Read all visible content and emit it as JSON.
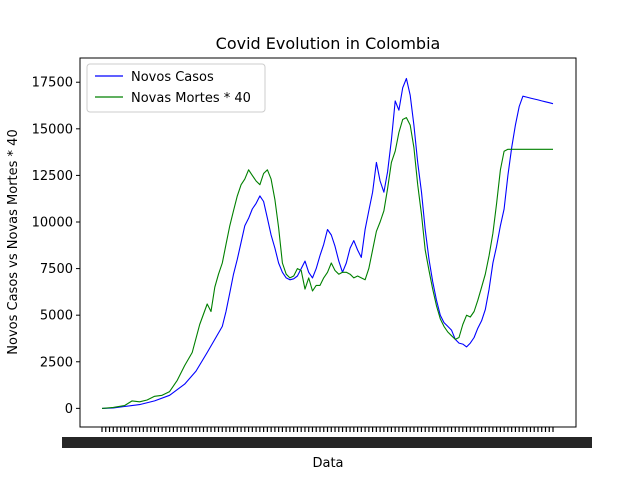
{
  "chart_data": {
    "type": "line",
    "title": "Covid Evolution in Colombia",
    "xlabel": "Data",
    "ylabel": "Novos Casos vs Novas Mortes * 40",
    "ylim": [
      -1000,
      18800
    ],
    "yticks": [
      0,
      2500,
      5000,
      7500,
      10000,
      12500,
      15000,
      17500
    ],
    "ytick_labels": [
      "0",
      "2500",
      "5000",
      "7500",
      "10000",
      "12500",
      "15000",
      "17500"
    ],
    "x_tick_labels_illegible": true,
    "x_index_range": [
      0,
      120
    ],
    "grid": false,
    "legend_position": "top-left",
    "series": [
      {
        "name": "Novos Casos",
        "color": "#0000ff",
        "x": [
          0,
          3,
          6,
          10,
          14,
          18,
          22,
          25,
          28,
          30,
          32,
          33,
          34,
          35,
          36,
          38,
          39,
          40,
          41,
          42,
          43,
          44,
          45,
          46,
          47,
          48,
          49,
          50,
          51,
          52,
          53,
          54,
          55,
          56,
          57,
          58,
          59,
          60,
          61,
          62,
          63,
          64,
          65,
          66,
          67,
          68,
          69,
          70,
          71,
          72,
          73,
          74,
          75,
          76,
          77,
          78,
          79,
          80,
          81,
          82,
          83,
          84,
          85,
          86,
          87,
          88,
          89,
          90,
          91,
          92,
          93,
          94,
          95,
          96,
          97,
          98,
          99,
          100,
          101,
          102,
          103,
          104,
          105,
          106,
          107,
          108,
          109,
          110,
          111,
          112,
          113,
          114,
          115,
          116,
          117,
          118,
          119,
          120
        ],
        "y": [
          0,
          20,
          100,
          200,
          400,
          700,
          1300,
          2000,
          3000,
          3700,
          4400,
          5200,
          6200,
          7200,
          8000,
          9800,
          10200,
          10700,
          11000,
          11400,
          11100,
          10200,
          9300,
          8600,
          7800,
          7300,
          7000,
          6900,
          6950,
          7100,
          7500,
          7900,
          7300,
          7000,
          7500,
          8200,
          8800,
          9600,
          9300,
          8700,
          7900,
          7300,
          7800,
          8600,
          9000,
          8500,
          8100,
          9600,
          10600,
          11600,
          13200,
          12200,
          11600,
          12700,
          14400,
          16500,
          16000,
          17200,
          17700,
          16800,
          15200,
          13200,
          11600,
          9600,
          8000,
          6800,
          5800,
          5000,
          4600,
          4400,
          4200,
          3700,
          3500,
          3450,
          3300,
          3500,
          3800,
          4300,
          4700,
          5300,
          6400,
          7800,
          8700,
          9800,
          10700,
          12500,
          14000,
          15200,
          16200,
          16750,
          16700,
          16650,
          16600,
          16550,
          16500,
          16450,
          16400,
          16350
        ]
      },
      {
        "name": "Novas Mortes * 40",
        "color": "#008000",
        "x": [
          0,
          3,
          6,
          8,
          10,
          12,
          14,
          16,
          18,
          20,
          22,
          24,
          26,
          28,
          29,
          30,
          31,
          32,
          33,
          34,
          35,
          36,
          37,
          38,
          39,
          40,
          41,
          42,
          43,
          44,
          45,
          46,
          47,
          48,
          49,
          50,
          51,
          52,
          53,
          54,
          55,
          56,
          57,
          58,
          59,
          60,
          61,
          62,
          63,
          64,
          65,
          66,
          67,
          68,
          69,
          70,
          71,
          72,
          73,
          74,
          75,
          76,
          77,
          78,
          79,
          80,
          81,
          82,
          83,
          84,
          85,
          86,
          87,
          88,
          89,
          90,
          91,
          92,
          93,
          94,
          95,
          96,
          97,
          98,
          99,
          100,
          101,
          102,
          103,
          104,
          105,
          106,
          107,
          108,
          109,
          110,
          111,
          112,
          113,
          114,
          115,
          116,
          117,
          118,
          119,
          120
        ],
        "y": [
          0,
          50,
          150,
          400,
          350,
          450,
          650,
          700,
          900,
          1500,
          2300,
          3000,
          4500,
          5600,
          5200,
          6500,
          7200,
          7800,
          8800,
          9800,
          10600,
          11400,
          12000,
          12300,
          12800,
          12500,
          12200,
          12000,
          12600,
          12800,
          12300,
          11200,
          9700,
          7800,
          7200,
          7000,
          7100,
          7500,
          7400,
          6400,
          7000,
          6300,
          6600,
          6600,
          7000,
          7300,
          7800,
          7400,
          7200,
          7300,
          7300,
          7200,
          7000,
          7100,
          7000,
          6900,
          7500,
          8500,
          9500,
          10000,
          10600,
          11800,
          13200,
          13800,
          14800,
          15500,
          15600,
          15200,
          14000,
          12000,
          10400,
          8500,
          7400,
          6400,
          5500,
          4800,
          4400,
          4100,
          3900,
          3700,
          3800,
          4500,
          5000,
          4900,
          5200,
          5800,
          6500,
          7200,
          8200,
          9400,
          11000,
          12800,
          13800,
          13900,
          13900,
          13900,
          13900,
          13900,
          13900,
          13900,
          13900,
          13900,
          13900,
          13900,
          13900,
          13900
        ]
      }
    ]
  }
}
